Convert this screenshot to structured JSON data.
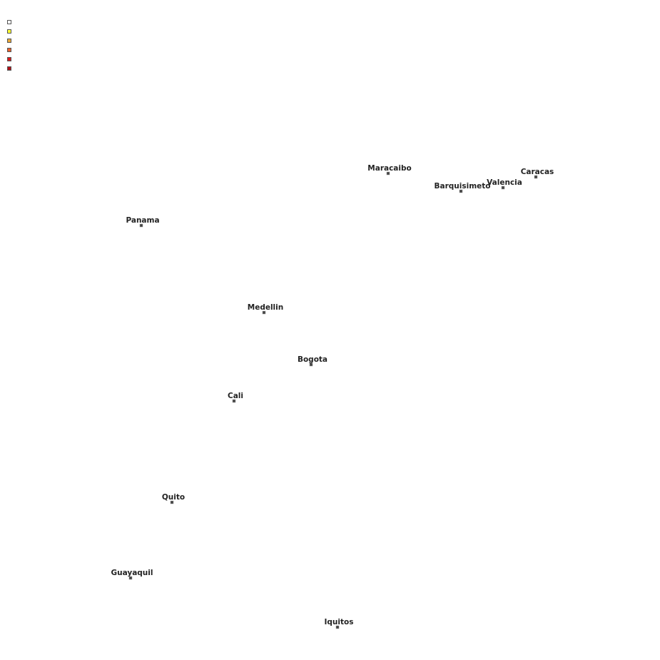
{
  "legend": {
    "colors": [
      "#ffffff",
      "#ffff33",
      "#e8a838",
      "#e8602c",
      "#d7191c",
      "#b01018"
    ]
  },
  "cities": [
    "Maracaibo",
    "Barquisimeto",
    "Valencia",
    "Caracas",
    "Panama",
    "Medellin",
    "Bogota",
    "Cali",
    "Quito",
    "Guayaquil",
    "Iquitos"
  ]
}
